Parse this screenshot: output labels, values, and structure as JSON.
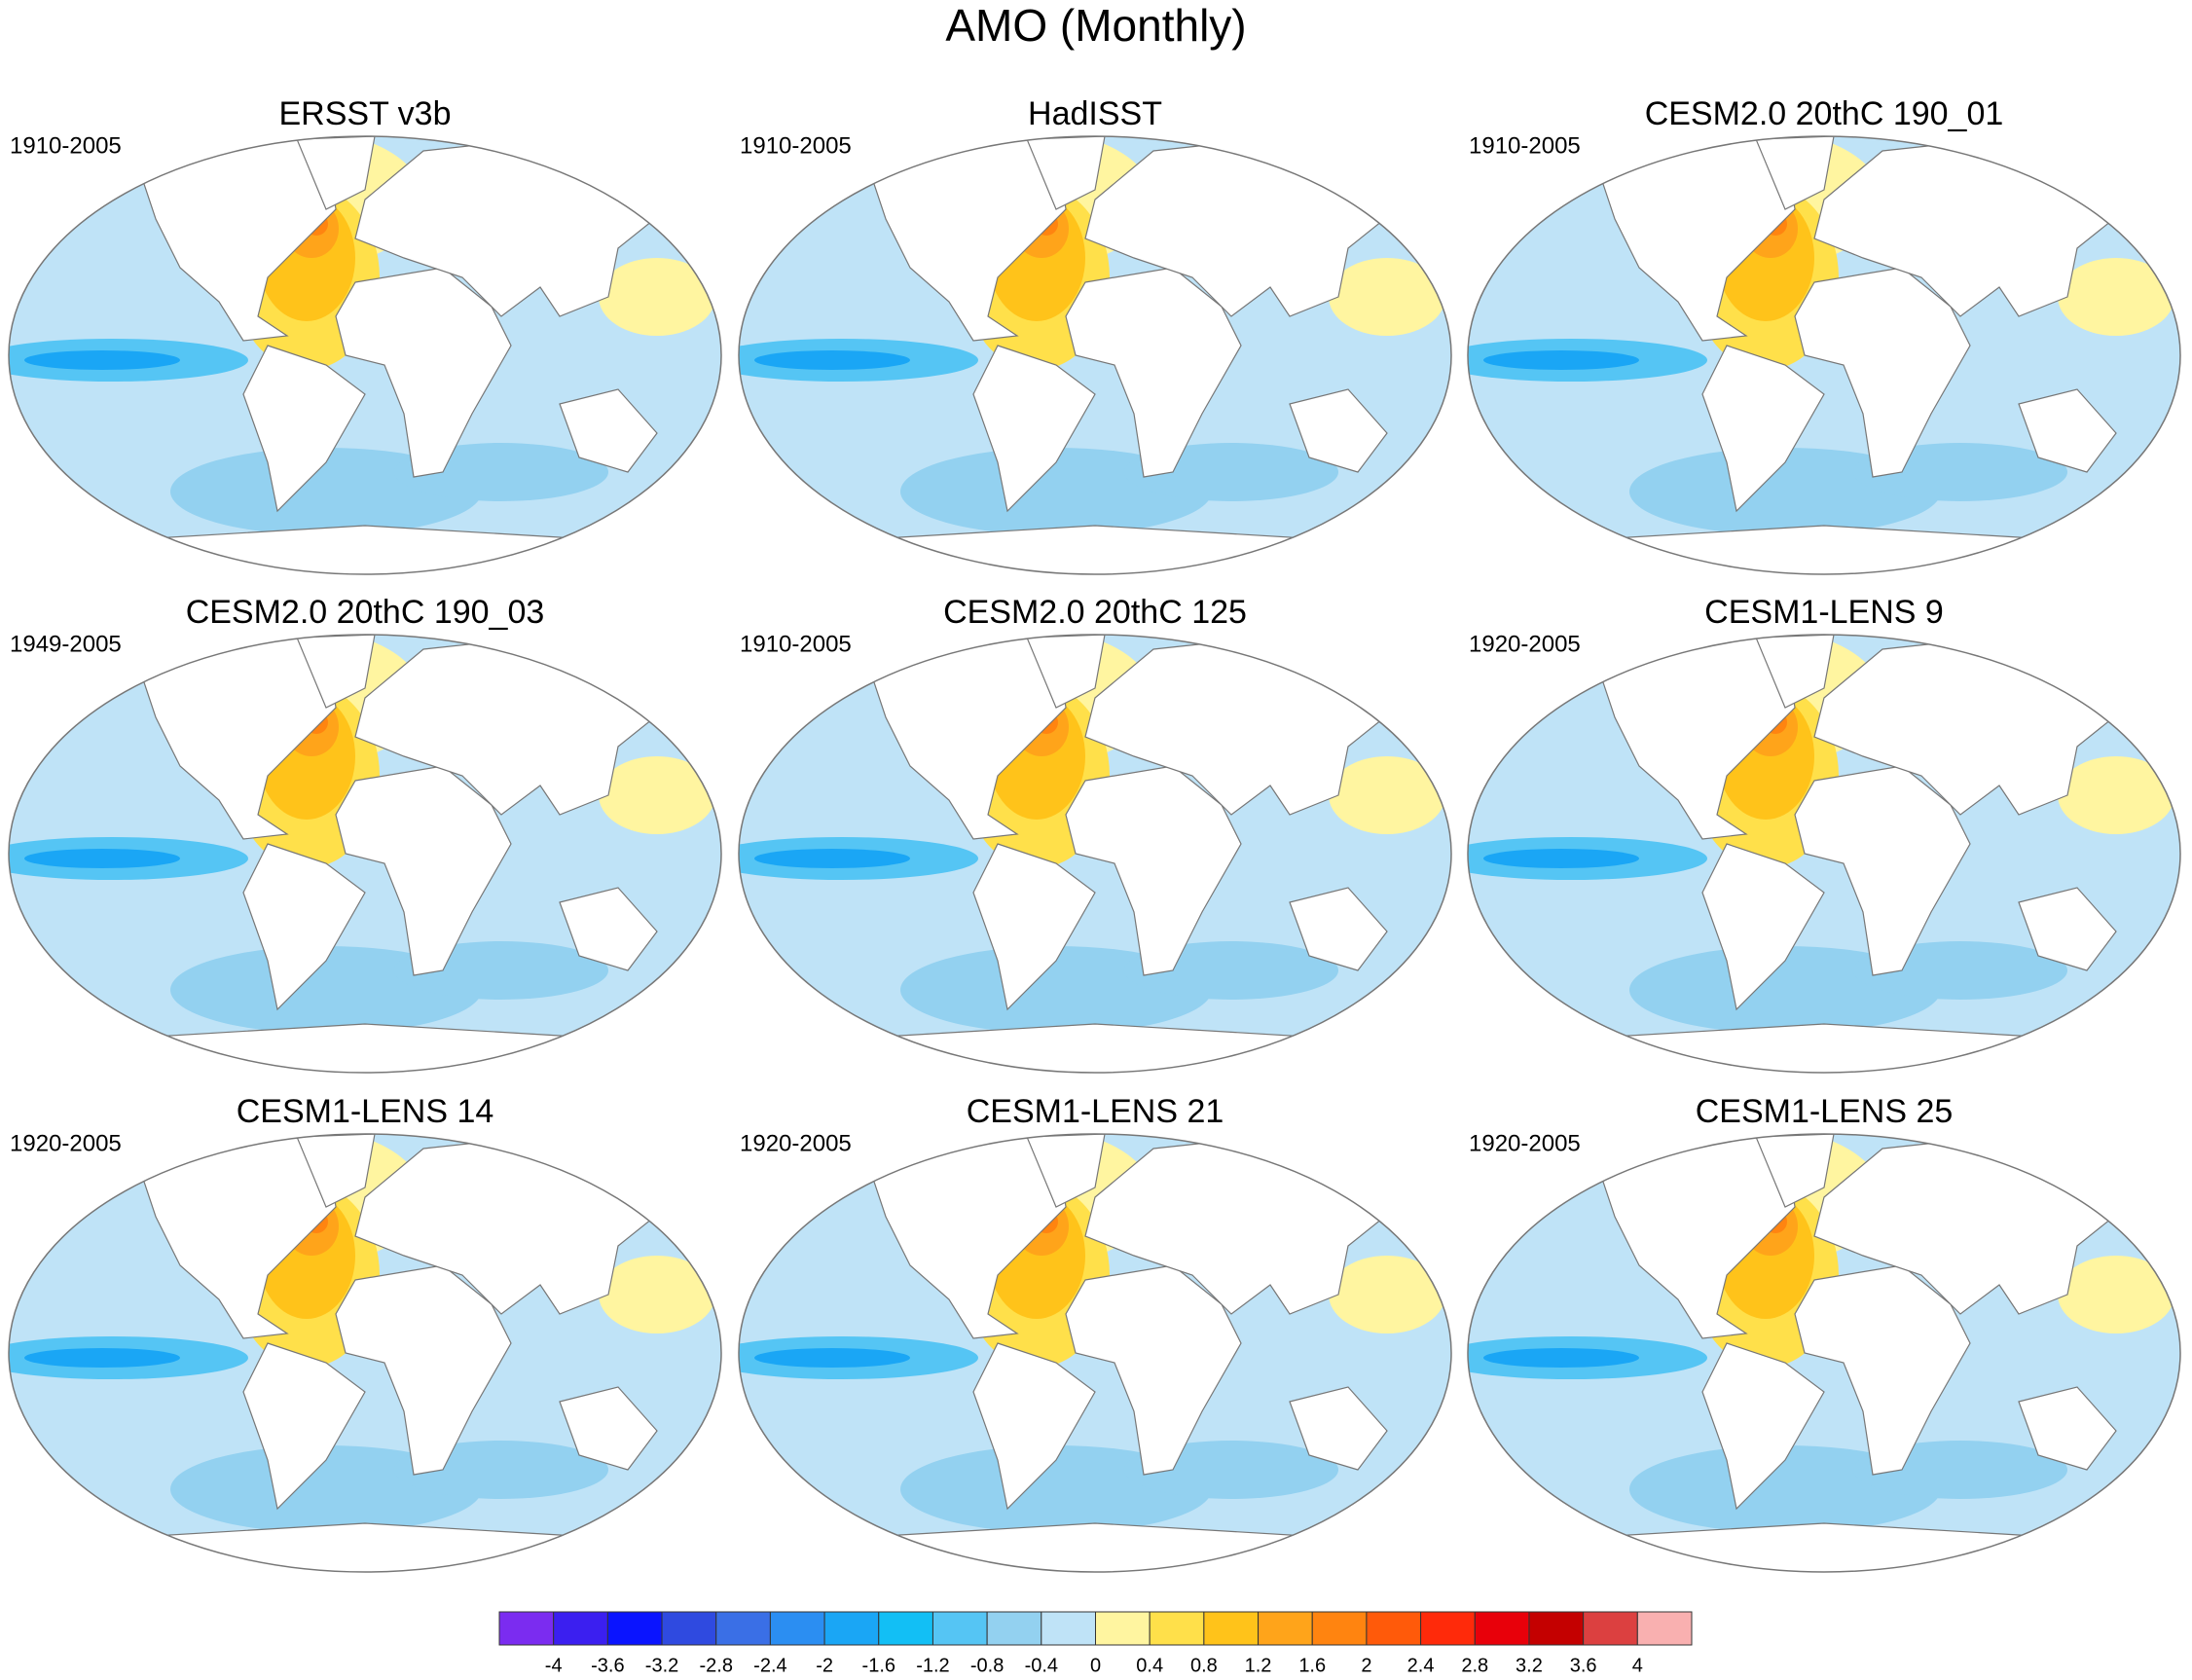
{
  "title": "AMO (Monthly)",
  "panels": [
    {
      "title": "ERSST v3b",
      "period": "1910-2005"
    },
    {
      "title": "HadISST",
      "period": "1910-2005"
    },
    {
      "title": "CESM2.0 20thC 190_01",
      "period": "1910-2005"
    },
    {
      "title": "CESM2.0 20thC 190_03",
      "period": "1949-2005"
    },
    {
      "title": "CESM2.0 20thC 125",
      "period": "1910-2005"
    },
    {
      "title": "CESM1-LENS 9",
      "period": "1920-2005"
    },
    {
      "title": "CESM1-LENS 14",
      "period": "1920-2005"
    },
    {
      "title": "CESM1-LENS 21",
      "period": "1920-2005"
    },
    {
      "title": "CESM1-LENS 25",
      "period": "1920-2005"
    }
  ],
  "colorbar": {
    "levels": [
      -4,
      -3.6,
      -3.2,
      -2.8,
      -2.4,
      -2,
      -1.6,
      -1.2,
      -0.8,
      -0.4,
      0,
      0.4,
      0.8,
      1.2,
      1.6,
      2,
      2.4,
      2.8,
      3.2,
      3.6,
      4
    ],
    "colors": [
      "#7b2cf0",
      "#3b1ff0",
      "#0a14ff",
      "#2f4ae0",
      "#3a6fe6",
      "#2b8ef2",
      "#1aa6f5",
      "#12bff5",
      "#55c5f4",
      "#93d1f0",
      "#bfe3f7",
      "#fff5a0",
      "#ffe04a",
      "#ffc31a",
      "#ffa41a",
      "#ff8410",
      "#ff5a0a",
      "#ff2a0a",
      "#e8000a",
      "#c40000",
      "#dc4040",
      "#f9b0b0"
    ]
  }
}
